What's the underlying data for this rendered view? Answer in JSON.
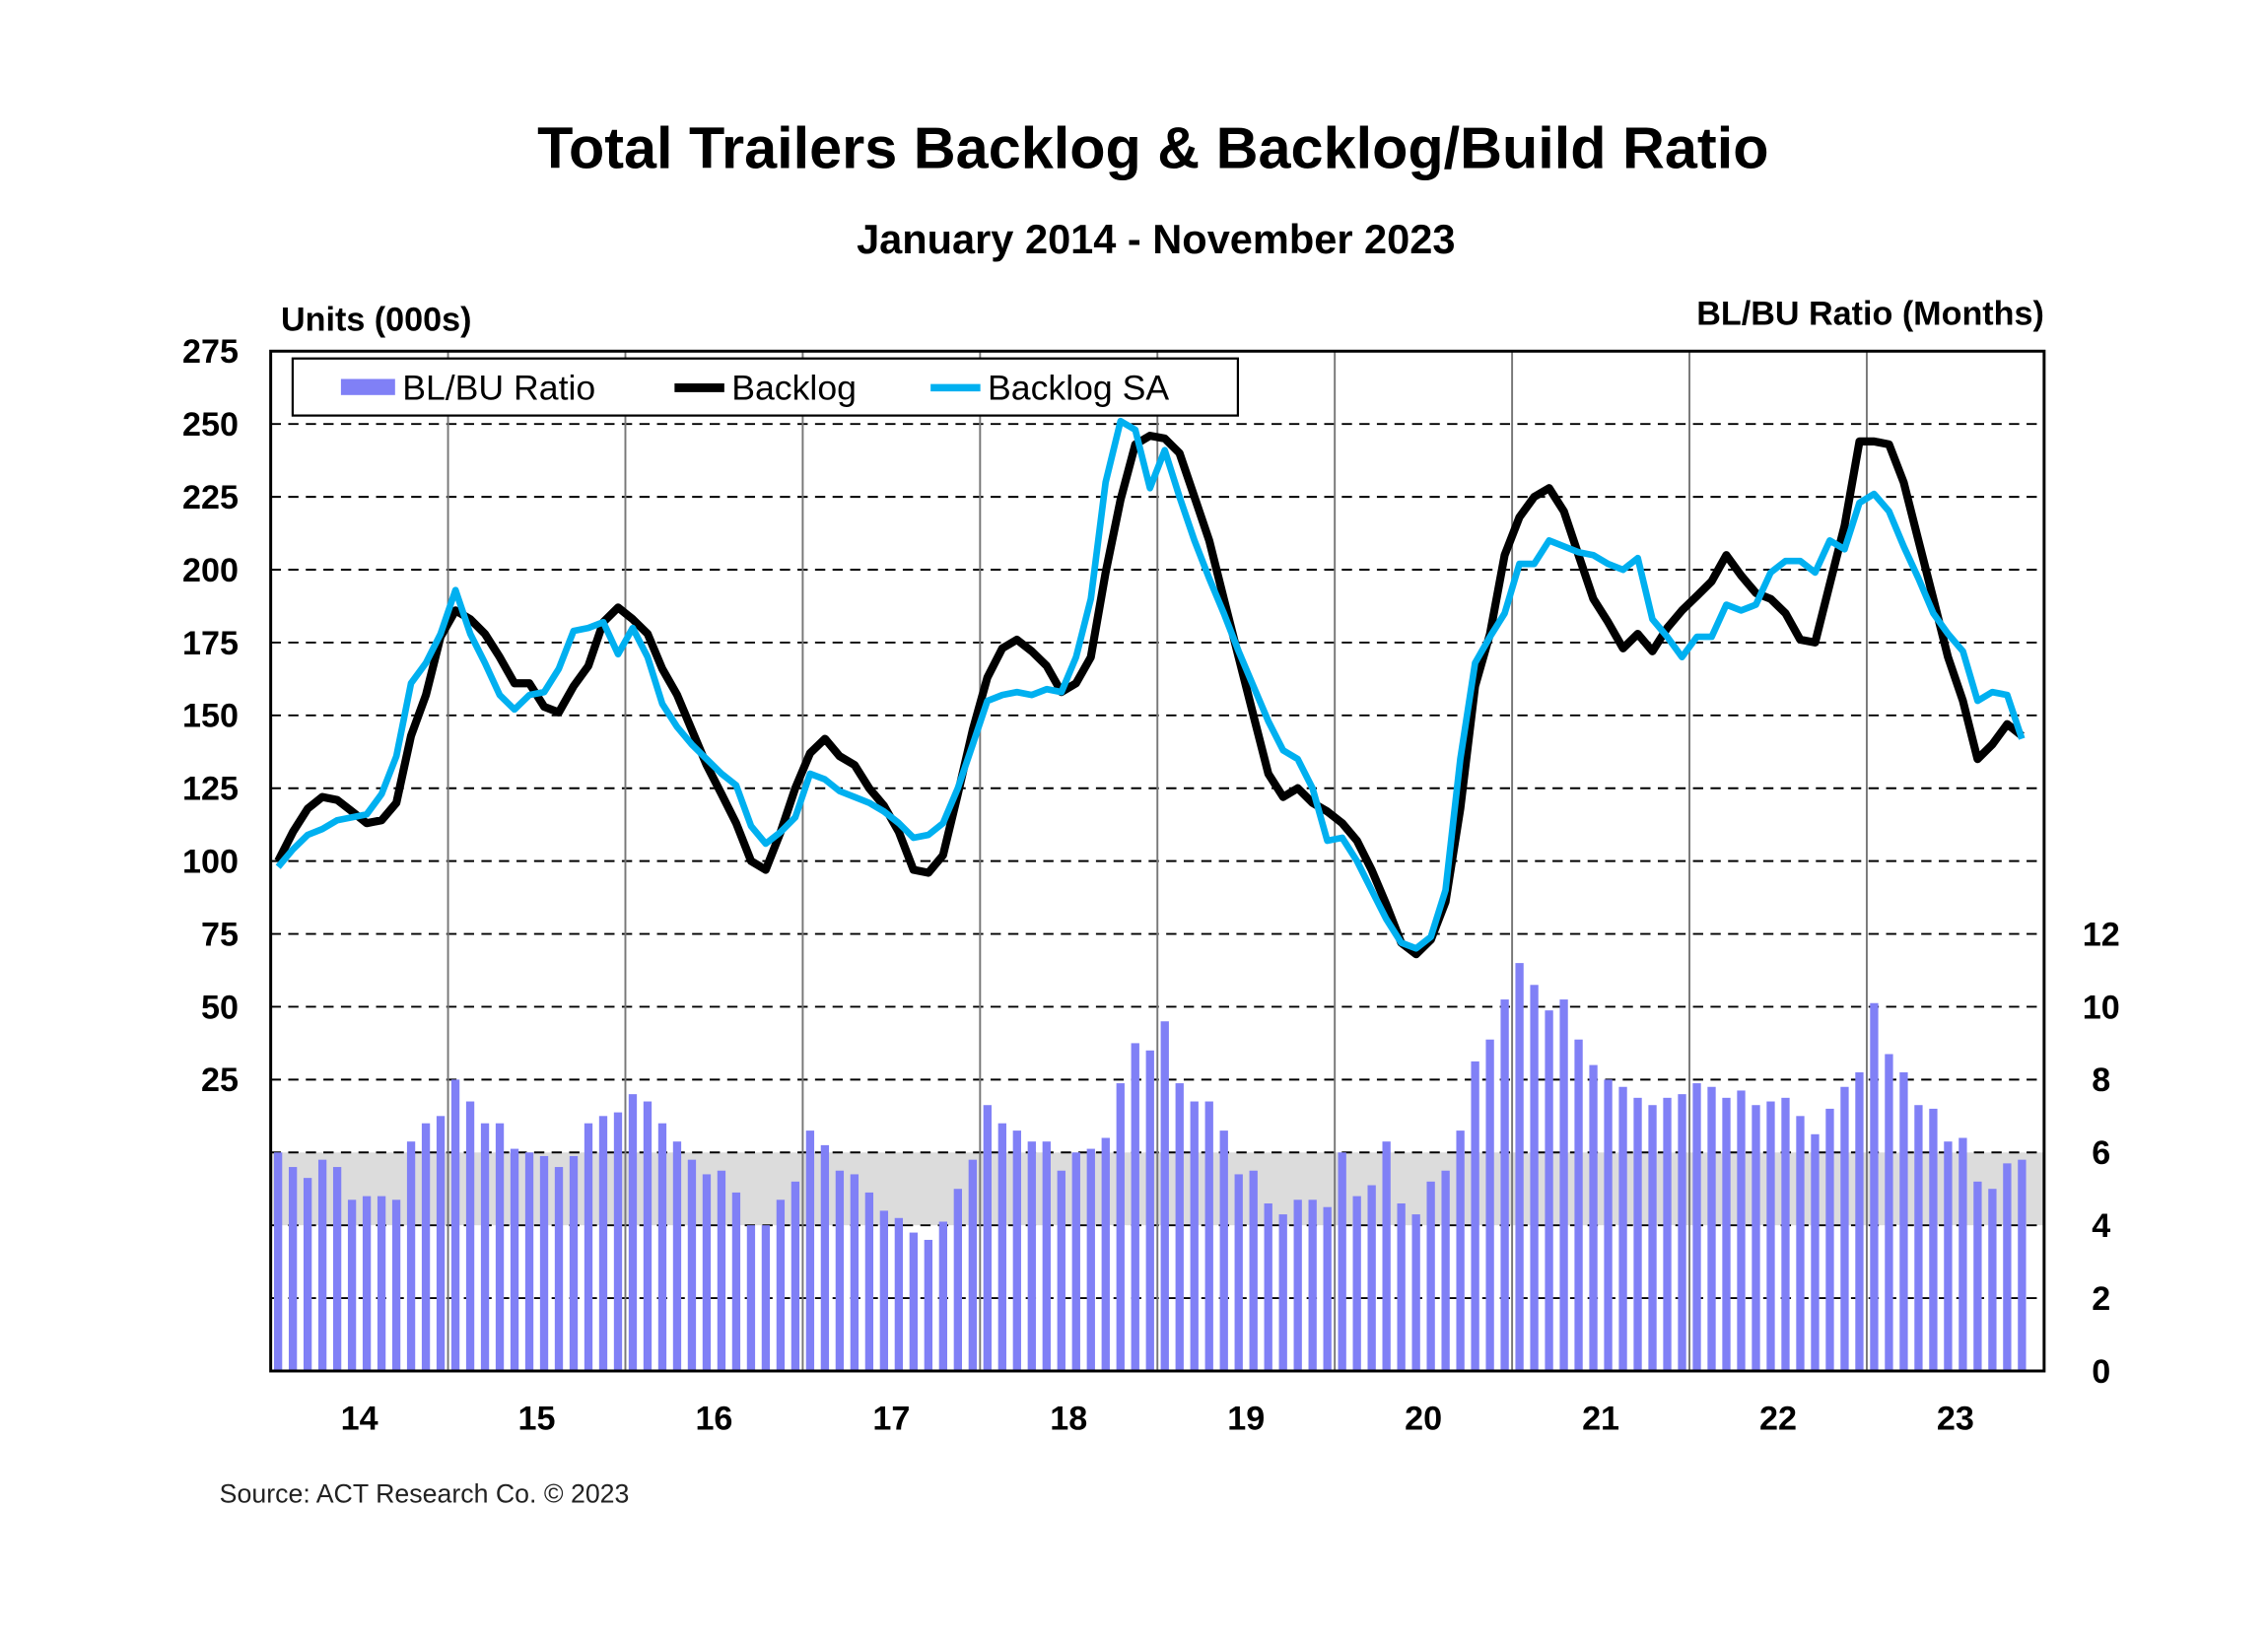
{
  "chart_data": {
    "type": "bar+line",
    "title": "Total Trailers Backlog & Backlog/Build Ratio",
    "subtitle": "January 2014 - November 2023",
    "ylabel_left": "Units (000s)",
    "ylabel_right": "BL/BU Ratio (Months)",
    "source": "Source: ACT Research Co. © 2023",
    "x_start": "2014-01",
    "x_end": "2023-11",
    "x_tick_labels": [
      "14",
      "15",
      "16",
      "17",
      "18",
      "19",
      "20",
      "21",
      "22",
      "23"
    ],
    "y_left_ticks": [
      "275",
      "250",
      "225",
      "200",
      "175",
      "150",
      "125",
      "100",
      "75",
      "50",
      "25"
    ],
    "y_left_range": [
      -75,
      275
    ],
    "y_right_ticks": [
      "12",
      "10",
      "8",
      "6",
      "4",
      "2",
      "0"
    ],
    "y_right_range": [
      0,
      28
    ],
    "shaded_band_ratio": [
      4,
      6
    ],
    "grid": true,
    "legend_position": "top-left",
    "colors": {
      "ratio": "#8080f6",
      "backlog": "#000000",
      "backlog_sa": "#00b0f0",
      "band": "#dcdcdc"
    },
    "series": [
      {
        "name": "BL/BU Ratio",
        "type": "bar",
        "axis": "right",
        "values": [
          6.0,
          5.6,
          5.3,
          5.8,
          5.6,
          4.7,
          4.8,
          4.8,
          4.7,
          6.3,
          6.8,
          7.0,
          8.0,
          7.4,
          6.8,
          6.8,
          6.1,
          6.0,
          5.9,
          5.6,
          5.9,
          6.8,
          7.0,
          7.1,
          7.6,
          7.4,
          6.8,
          6.3,
          5.8,
          5.4,
          5.5,
          4.9,
          4.0,
          4.0,
          4.7,
          5.2,
          6.6,
          6.2,
          5.5,
          5.4,
          4.9,
          4.4,
          4.2,
          3.8,
          3.6,
          4.1,
          5.0,
          5.8,
          7.3,
          6.8,
          6.6,
          6.3,
          6.3,
          5.5,
          6.0,
          6.1,
          6.4,
          7.9,
          9.0,
          8.8,
          9.6,
          7.9,
          7.4,
          7.4,
          6.6,
          5.4,
          5.5,
          4.6,
          4.3,
          4.7,
          4.7,
          4.5,
          6.0,
          4.8,
          5.1,
          6.3,
          4.6,
          4.3,
          5.2,
          5.5,
          6.6,
          8.5,
          9.1,
          10.2,
          11.2,
          10.6,
          9.9,
          10.2,
          9.1,
          8.4,
          8.0,
          7.8,
          7.5,
          7.3,
          7.5,
          7.6,
          7.9,
          7.8,
          7.5,
          7.7,
          7.3,
          7.4,
          7.5,
          7.0,
          6.5,
          7.2,
          7.8,
          8.2,
          10.1,
          8.7,
          8.2,
          7.3,
          7.2,
          6.3,
          6.4,
          5.2,
          5.0,
          5.7,
          5.8
        ]
      },
      {
        "name": "Backlog",
        "type": "line",
        "axis": "left",
        "values": [
          100,
          110,
          118,
          122,
          121,
          117,
          113,
          114,
          120,
          143,
          157,
          177,
          186,
          183,
          178,
          170,
          161,
          161,
          153,
          151,
          160,
          167,
          182,
          187,
          183,
          178,
          166,
          157,
          145,
          133,
          123,
          113,
          100,
          97,
          110,
          125,
          137,
          142,
          136,
          133,
          125,
          119,
          110,
          97,
          96,
          102,
          123,
          145,
          163,
          173,
          176,
          172,
          167,
          158,
          161,
          170,
          199,
          224,
          243,
          246,
          245,
          240,
          225,
          210,
          190,
          170,
          150,
          130,
          122,
          125,
          120,
          117,
          113,
          107,
          97,
          85,
          72,
          68,
          73,
          86,
          118,
          160,
          178,
          205,
          218,
          225,
          228,
          220,
          205,
          190,
          182,
          173,
          178,
          172,
          180,
          186,
          191,
          196,
          205,
          198,
          192,
          190,
          185,
          176,
          175,
          195,
          215,
          244,
          244,
          243,
          230,
          210,
          190,
          170,
          155,
          135,
          140,
          147,
          143
        ]
      },
      {
        "name": "Backlog SA",
        "type": "line",
        "axis": "left",
        "values": [
          98,
          104,
          109,
          111,
          114,
          115,
          116,
          123,
          136,
          161,
          168,
          178,
          193,
          178,
          168,
          157,
          152,
          157,
          158,
          166,
          179,
          180,
          182,
          171,
          180,
          170,
          154,
          146,
          140,
          135,
          130,
          126,
          112,
          106,
          110,
          115,
          130,
          128,
          124,
          122,
          120,
          117,
          113,
          108,
          109,
          113,
          125,
          140,
          155,
          157,
          158,
          157,
          159,
          158,
          170,
          190,
          230,
          251,
          248,
          228,
          241,
          225,
          210,
          197,
          185,
          172,
          160,
          148,
          138,
          135,
          125,
          107,
          108,
          100,
          90,
          80,
          72,
          70,
          74,
          90,
          135,
          168,
          177,
          185,
          202,
          202,
          210,
          208,
          206,
          205,
          202,
          200,
          204,
          183,
          177,
          170,
          177,
          177,
          188,
          186,
          188,
          199,
          203,
          203,
          199,
          210,
          207,
          223,
          226,
          220,
          208,
          197,
          185,
          178,
          172,
          155,
          158,
          157,
          142
        ]
      }
    ]
  }
}
